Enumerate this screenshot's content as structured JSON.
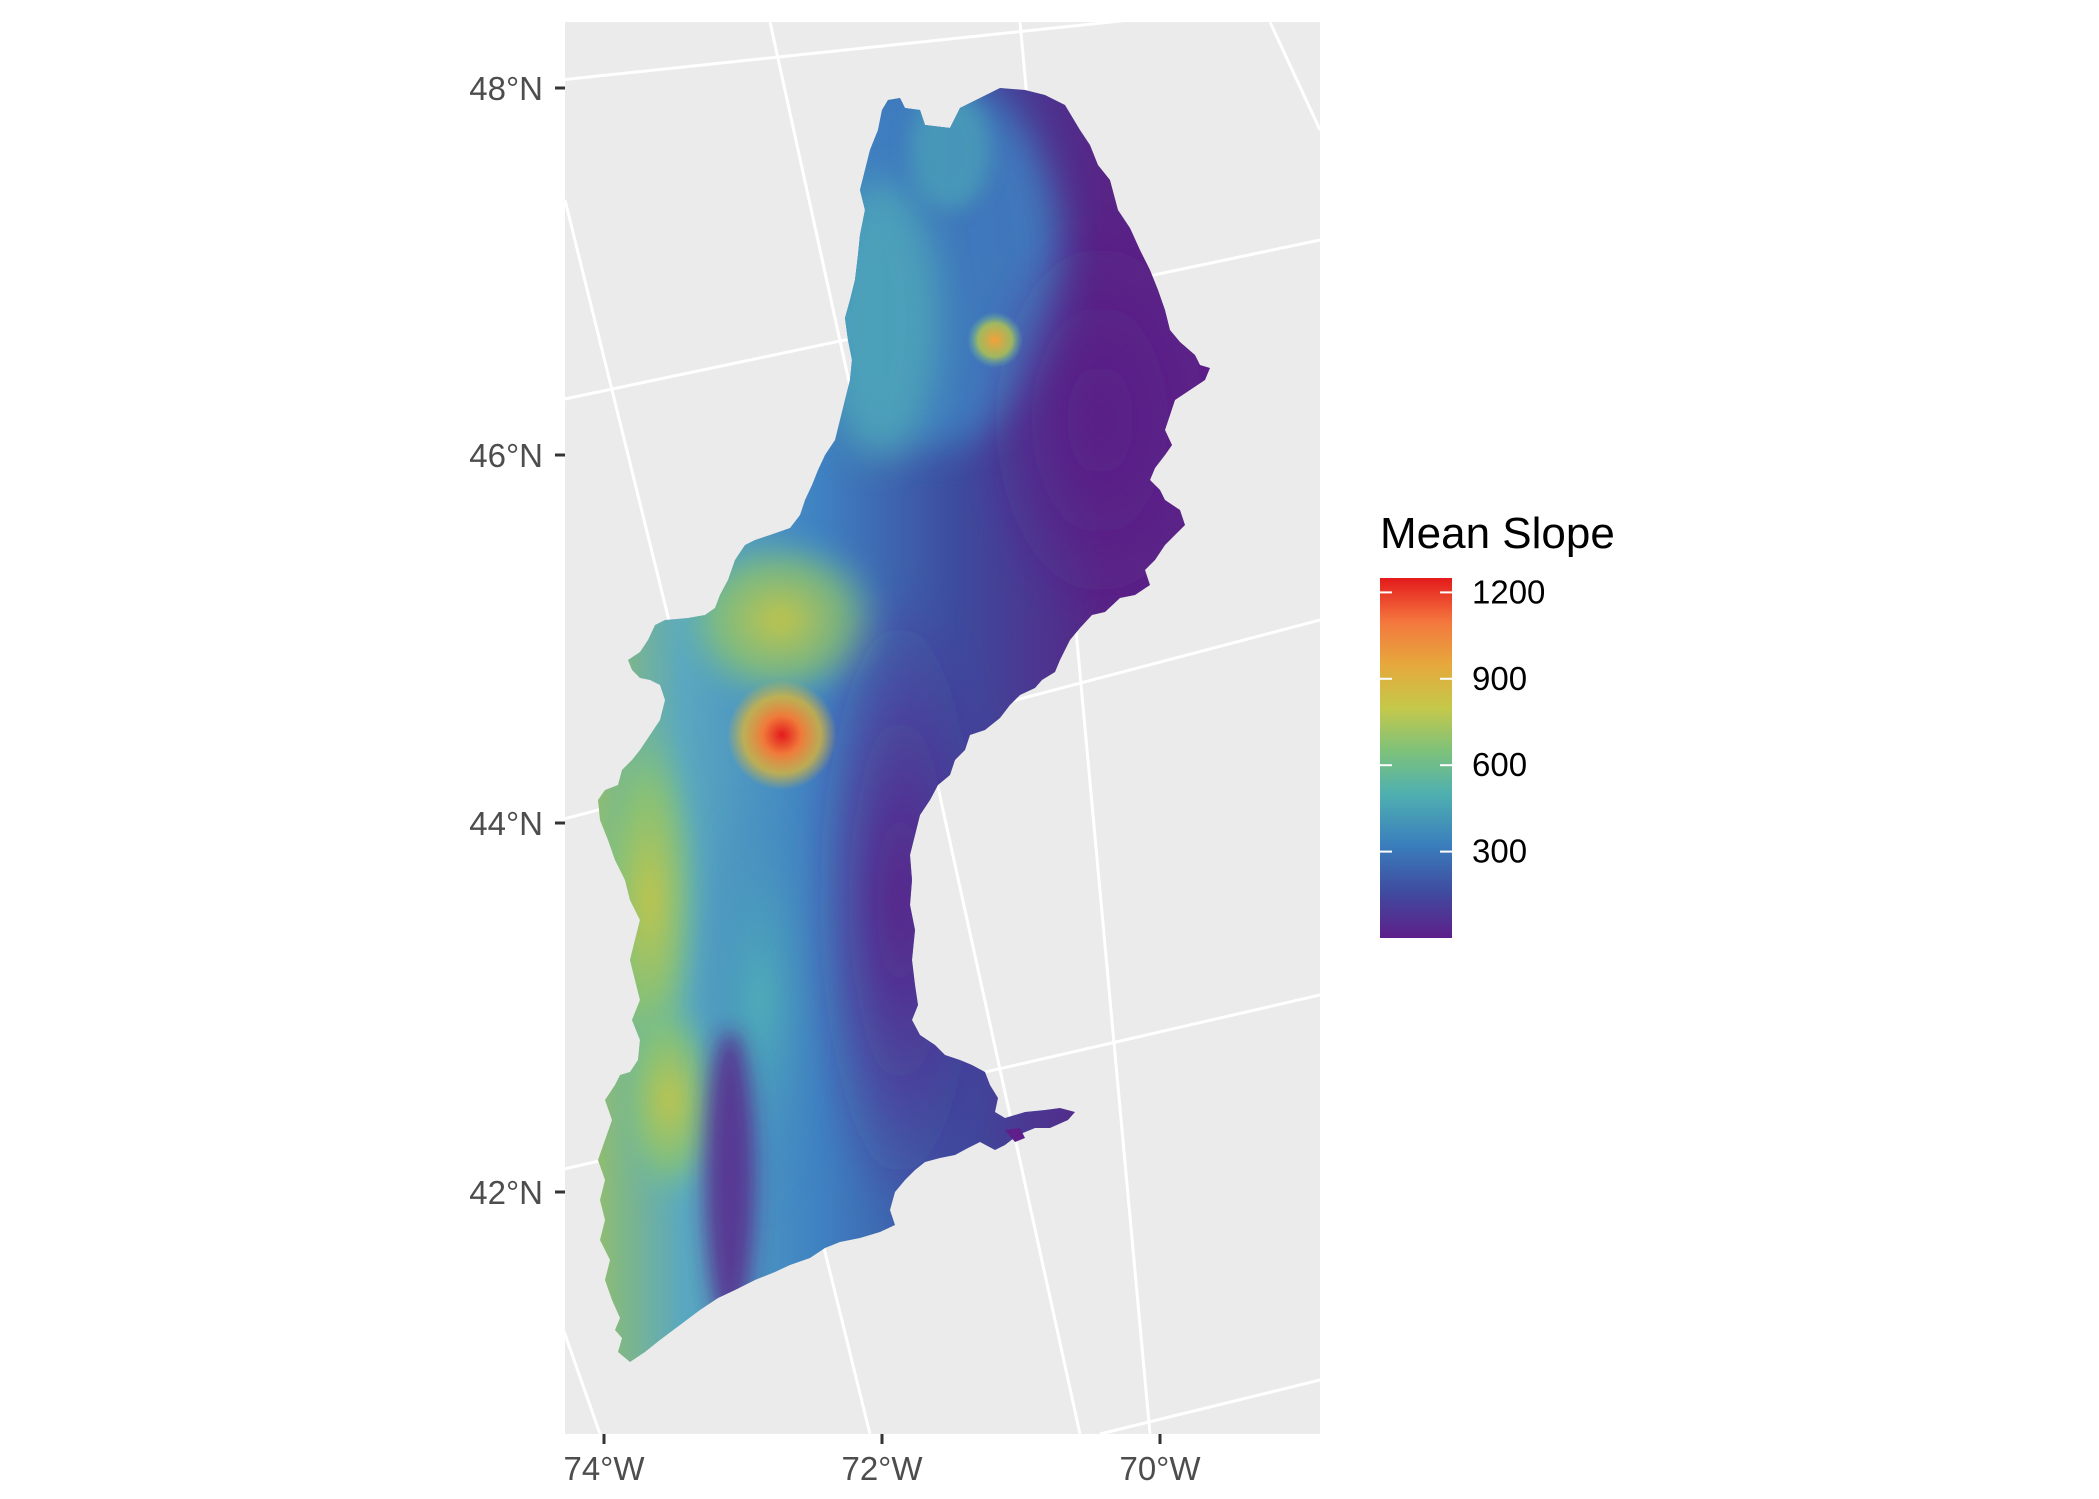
{
  "map": {
    "y_axis_labels": [
      "48°N",
      "46°N",
      "44°N",
      "42°N"
    ],
    "x_axis_labels": [
      "74°W",
      "72°W",
      "70°W"
    ],
    "panel_background": "#ebebeb",
    "graticule_color": "#ffffff",
    "legend": {
      "title": "Mean Slope",
      "ticks": [
        "1200",
        "900",
        "600",
        "300"
      ],
      "tick_values": [
        1200,
        900,
        600,
        300
      ],
      "range": [
        0,
        1250
      ],
      "palette": [
        "#e31a1c",
        "#f46d43",
        "#d7b63a",
        "#a6cf52",
        "#66c2a5",
        "#3288bd",
        "#3f4c9f",
        "#5e1f8a"
      ]
    }
  },
  "chart_data": {
    "type": "heatmap",
    "title": "",
    "xlabel": "",
    "ylabel": "",
    "x_ticks": [
      "74°W",
      "72°W",
      "70°W"
    ],
    "y_ticks": [
      "48°N",
      "46°N",
      "44°N",
      "42°N"
    ],
    "colorbar": {
      "title": "Mean Slope",
      "ticks": [
        1200,
        900,
        600,
        300
      ],
      "range": [
        0,
        1250
      ]
    },
    "legend_position": "right"
  }
}
